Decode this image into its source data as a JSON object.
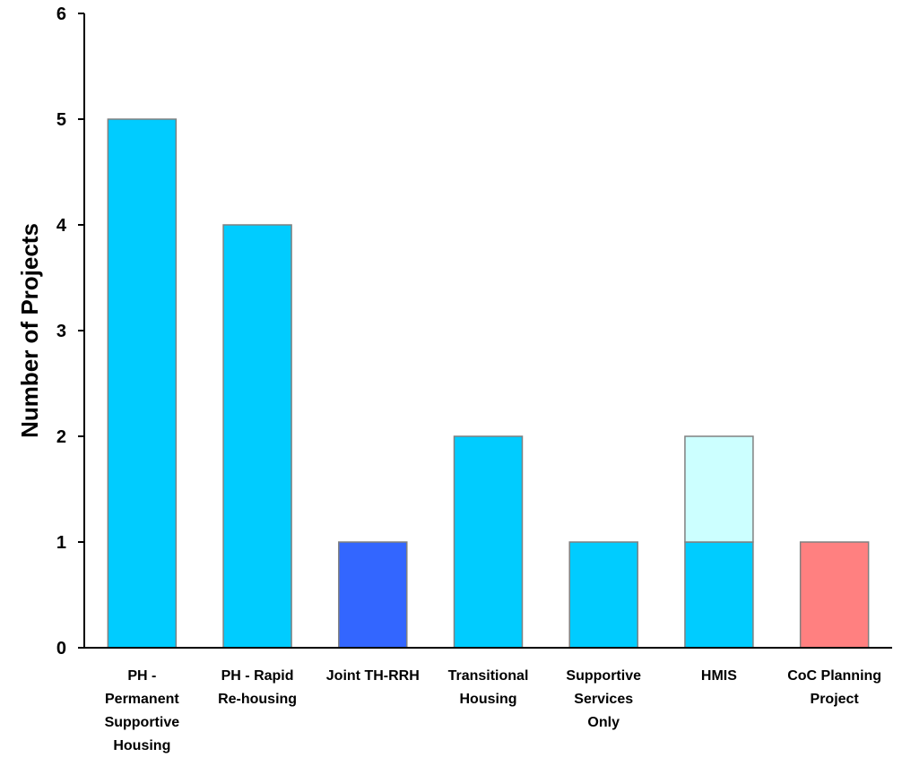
{
  "chart_data": {
    "type": "bar",
    "stacked": true,
    "title": "",
    "xlabel": "",
    "ylabel": "Number of Projects",
    "ylim": [
      0,
      6
    ],
    "yticks": [
      0,
      1,
      2,
      3,
      4,
      5,
      6
    ],
    "grid": false,
    "legend": "none",
    "categories": [
      [
        "PH -",
        "Permanent",
        "Supportive",
        "Housing"
      ],
      [
        "PH - Rapid",
        "Re-housing"
      ],
      [
        "Joint TH-RRH"
      ],
      [
        "Transitional",
        "Housing"
      ],
      [
        "Supportive",
        "Services",
        "Only"
      ],
      [
        "HMIS"
      ],
      [
        "CoC Planning",
        "Project"
      ]
    ],
    "bars": [
      [
        {
          "value": 5,
          "color": "#00ccff"
        }
      ],
      [
        {
          "value": 4,
          "color": "#00ccff"
        }
      ],
      [
        {
          "value": 1,
          "color": "#3366ff"
        }
      ],
      [
        {
          "value": 2,
          "color": "#00ccff"
        }
      ],
      [
        {
          "value": 1,
          "color": "#00ccff"
        }
      ],
      [
        {
          "value": 1,
          "color": "#00ccff"
        },
        {
          "value": 1,
          "color": "#ccffff"
        }
      ],
      [
        {
          "value": 1,
          "color": "#ff8080"
        }
      ]
    ],
    "bar_border_color": "#808080"
  }
}
